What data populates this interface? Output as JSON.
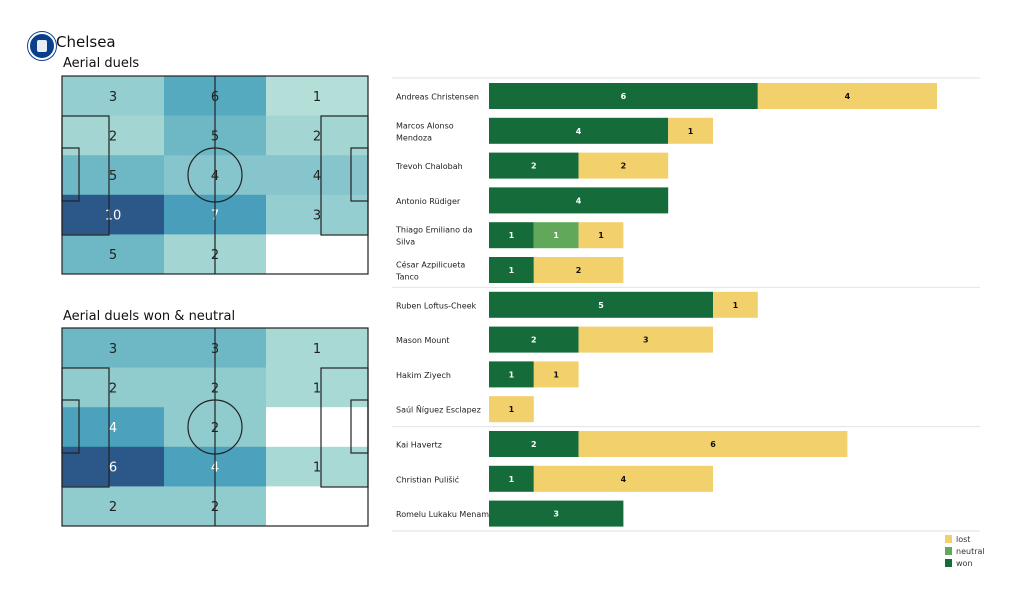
{
  "header": {
    "team": "Chelsea"
  },
  "colors": {
    "won": "#156b3a",
    "neutral": "#61a85a",
    "lost": "#f2d06b",
    "heat_low": "#c4e6dc",
    "heat_high": "#2b5888"
  },
  "chart_data": [
    {
      "type": "heatmap",
      "title": "Aerial duels",
      "grid": [
        [
          3,
          6,
          1
        ],
        [
          2,
          5,
          2
        ],
        [
          5,
          4,
          4
        ],
        [
          10,
          7,
          3
        ],
        [
          5,
          2,
          null
        ]
      ]
    },
    {
      "type": "heatmap",
      "title": "Aerial duels won & neutral",
      "grid": [
        [
          3,
          3,
          1
        ],
        [
          2,
          2,
          1
        ],
        [
          4,
          2,
          null
        ],
        [
          6,
          4,
          1
        ],
        [
          2,
          2,
          null
        ]
      ]
    },
    {
      "type": "bar",
      "orientation": "horizontal",
      "stacked": true,
      "legend": [
        "lost",
        "neutral",
        "won"
      ],
      "legend_position": "bottom-right",
      "groups": [
        {
          "players": [
            {
              "name": "Andreas Christensen",
              "won": 6,
              "neutral": 0,
              "lost": 4
            },
            {
              "name": "Marcos  Alonso Mendoza",
              "won": 4,
              "neutral": 0,
              "lost": 1
            },
            {
              "name": "Trevoh Chalobah",
              "won": 2,
              "neutral": 0,
              "lost": 2
            },
            {
              "name": "Antonio Rüdiger",
              "won": 4,
              "neutral": 0,
              "lost": 0
            },
            {
              "name": "Thiago Emiliano da Silva",
              "won": 1,
              "neutral": 1,
              "lost": 1
            },
            {
              "name": "César Azpilicueta Tanco",
              "won": 1,
              "neutral": 0,
              "lost": 2
            }
          ]
        },
        {
          "players": [
            {
              "name": "Ruben Loftus-Cheek",
              "won": 5,
              "neutral": 0,
              "lost": 1
            },
            {
              "name": "Mason Mount",
              "won": 2,
              "neutral": 0,
              "lost": 3
            },
            {
              "name": "Hakim Ziyech",
              "won": 1,
              "neutral": 0,
              "lost": 1
            },
            {
              "name": "Saúl Ñíguez Esclapez",
              "won": 0,
              "neutral": 0,
              "lost": 1
            }
          ]
        },
        {
          "players": [
            {
              "name": "Kai Havertz",
              "won": 2,
              "neutral": 0,
              "lost": 6
            },
            {
              "name": "Christian Pulišić",
              "won": 1,
              "neutral": 0,
              "lost": 4
            },
            {
              "name": "Romelu Lukaku Menama",
              "won": 3,
              "neutral": 0,
              "lost": 0
            }
          ]
        }
      ]
    }
  ]
}
